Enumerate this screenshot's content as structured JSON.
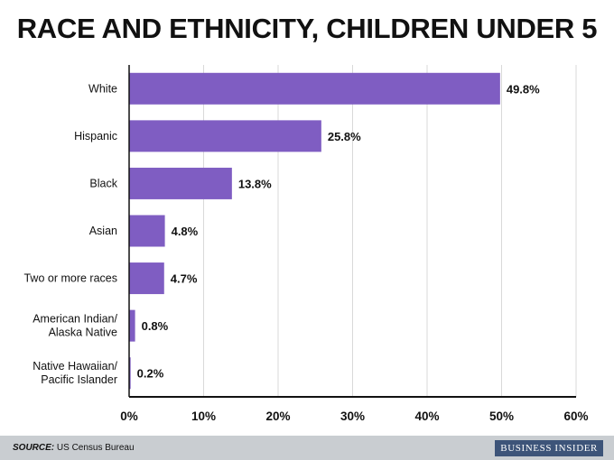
{
  "chart_data": {
    "type": "bar",
    "orientation": "horizontal",
    "title": "RACE AND ETHNICITY, CHILDREN UNDER 5",
    "categories": [
      "White",
      "Hispanic",
      "Black",
      "Asian",
      "Two or more races",
      "American Indian/\nAlaska Native",
      "Native Hawaiian/\nPacific Islander"
    ],
    "values": [
      49.8,
      25.8,
      13.8,
      4.8,
      4.7,
      0.8,
      0.2
    ],
    "value_labels": [
      "49.8%",
      "25.8%",
      "13.8%",
      "4.8%",
      "4.7%",
      "0.8%",
      "0.2%"
    ],
    "xlim": [
      0,
      60
    ],
    "x_ticks": [
      0,
      10,
      20,
      30,
      40,
      50,
      60
    ],
    "x_tick_labels": [
      "0%",
      "10%",
      "20%",
      "30%",
      "40%",
      "50%",
      "60%"
    ],
    "grid": true,
    "bar_color": "#7f5dc2"
  },
  "footer": {
    "source_label": "SOURCE:",
    "source_text": " US Census Bureau",
    "brand": "BUSINESS INSIDER"
  },
  "colors": {
    "bar": "#7f5dc2",
    "gridline": "#d9d9d9",
    "footer_bg": "#c9cdd1",
    "brand_bg": "#3d5479"
  }
}
